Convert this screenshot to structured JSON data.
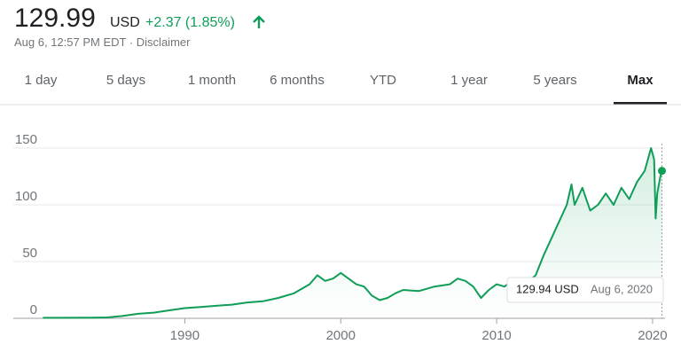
{
  "header": {
    "price": "129.99",
    "currency": "USD",
    "change": "+2.37 (1.85%)",
    "timestamp": "Aug 6, 12:57 PM EDT",
    "disclaimer": "Disclaimer"
  },
  "tabs": [
    "1 day",
    "5 days",
    "1 month",
    "6 months",
    "YTD",
    "1 year",
    "5 years",
    "Max"
  ],
  "selected_tab": 7,
  "tooltip": {
    "price": "129.94 USD",
    "date": "Aug 6, 2020"
  },
  "chart_data": {
    "type": "line",
    "color": "#0f9d58",
    "grid": true,
    "xlim": [
      1979,
      2020.8
    ],
    "xticks": [
      1990,
      2000,
      2010,
      2020
    ],
    "ylim": [
      0,
      150
    ],
    "yticks": [
      0,
      50,
      100,
      150
    ],
    "series": [
      {
        "name": "Price",
        "x": [
          1980.9,
          1982,
          1984,
          1985,
          1986,
          1987,
          1988,
          1989,
          1990,
          1991,
          1992,
          1993,
          1994,
          1995,
          1996,
          1997,
          1998,
          1998.5,
          1999,
          1999.5,
          2000,
          2000.5,
          2001,
          2001.5,
          2002,
          2002.5,
          2003,
          2003.5,
          2004,
          2005,
          2006,
          2007,
          2007.5,
          2008,
          2008.5,
          2009,
          2009.5,
          2010,
          2010.5,
          2011,
          2011.5,
          2012,
          2012.5,
          2013,
          2013.5,
          2014,
          2014.5,
          2014.8,
          2015,
          2015.5,
          2016,
          2016.5,
          2017,
          2017.5,
          2018,
          2018.5,
          2019,
          2019.5,
          2019.9,
          2020.1,
          2020.2,
          2020.3,
          2020.5,
          2020.6
        ],
        "values": [
          0.5,
          0.5,
          0.6,
          0.8,
          2,
          4,
          5,
          7,
          9,
          10,
          11,
          12,
          14,
          15,
          18,
          22,
          30,
          38,
          33,
          35,
          40,
          35,
          30,
          28,
          20,
          16,
          18,
          22,
          25,
          24,
          28,
          30,
          35,
          33,
          28,
          18,
          25,
          30,
          28,
          33,
          35,
          32,
          38,
          55,
          70,
          85,
          100,
          118,
          100,
          115,
          95,
          100,
          110,
          100,
          115,
          105,
          120,
          130,
          150,
          140,
          88,
          110,
          125,
          129.94
        ]
      }
    ]
  }
}
